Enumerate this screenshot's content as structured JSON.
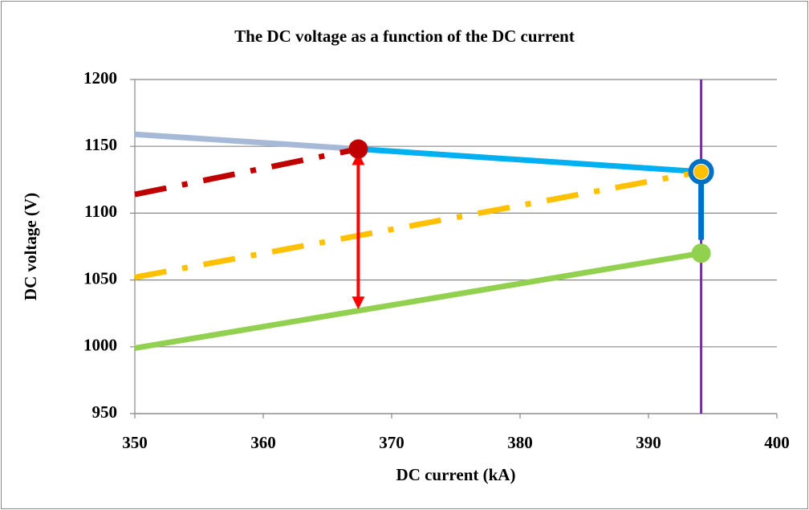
{
  "chart_data": {
    "type": "line",
    "title": "The DC voltage as a function of the DC current",
    "xlabel": "DC current (kA)",
    "ylabel": "DC voltage (V)",
    "xlim": [
      350,
      400
    ],
    "xticks": [
      350,
      360,
      370,
      380,
      390,
      400
    ],
    "ylim": [
      950,
      1200
    ],
    "yticks": [
      950,
      1000,
      1050,
      1100,
      1150,
      1200
    ],
    "grid": true,
    "series": [
      {
        "color": "#a6b9d6",
        "style": "solid",
        "x": [
          350,
          367.4
        ],
        "values": [
          1159,
          1148
        ]
      },
      {
        "color": "#00b0f0",
        "style": "solid",
        "x": [
          367.4,
          394.1
        ],
        "values": [
          1148,
          1131
        ]
      },
      {
        "color": "#0070c0",
        "style": "solid",
        "x": [
          394.1,
          394.1
        ],
        "values": [
          1131,
          1080
        ]
      },
      {
        "color": "#c00000",
        "style": "dashdot",
        "x": [
          350,
          367.4
        ],
        "values": [
          1114,
          1148
        ]
      },
      {
        "color": "#ffc000",
        "style": "dashdot",
        "x": [
          350,
          394.1
        ],
        "values": [
          1052,
          1131
        ]
      },
      {
        "color": "#92d050",
        "style": "solid",
        "x": [
          350,
          394.1
        ],
        "values": [
          999,
          1070
        ]
      }
    ],
    "vlines": [
      {
        "x": 394.1,
        "color": "#7030a0"
      }
    ],
    "arrows": [
      {
        "x": 367.4,
        "y": [
          1148,
          1028
        ],
        "color": "#ff0000"
      }
    ],
    "points": [
      {
        "x": 367.4,
        "y": 1148,
        "color": "#c00000",
        "ring": false
      },
      {
        "x": 394.1,
        "y": 1131,
        "color": "#0070c0",
        "ring": true
      },
      {
        "x": 394.1,
        "y": 1131,
        "color": "#ffc000",
        "ring": false
      },
      {
        "x": 394.1,
        "y": 1070,
        "color": "#92d050",
        "ring": false
      }
    ]
  }
}
